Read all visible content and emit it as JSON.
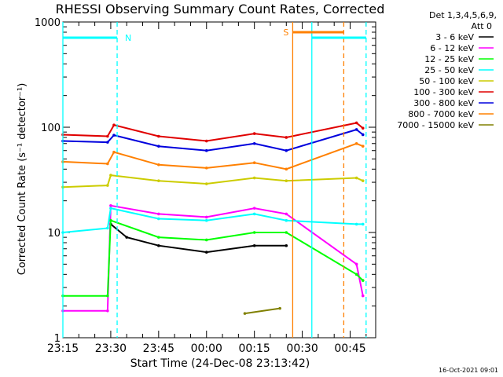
{
  "title": "RHESSI Observing Summary Count Rates, Corrected",
  "footer_timestamp": "16-Oct-2021 09:01",
  "legend": {
    "header_line1": "Det 1,3,4,5,6,9,",
    "header_line2": "Att 0"
  },
  "chart_data": {
    "type": "line",
    "title": "RHESSI Observing Summary Count Rates, Corrected",
    "xlabel": "Start Time (24-Dec-08 23:13:42)",
    "ylabel": "Corrected Count Rate (s⁻¹ detector⁻¹)",
    "yscale": "log",
    "ylim": [
      1,
      1000
    ],
    "y_ticks": [
      "1",
      "10",
      "100",
      "1000"
    ],
    "xlim": [
      "23:15",
      "00:53"
    ],
    "x_ticks": [
      "23:15",
      "23:30",
      "23:45",
      "00:00",
      "00:15",
      "00:30",
      "00:45"
    ],
    "grid": false,
    "legend_position": "right",
    "series": [
      {
        "name": "3 - 6 keV",
        "color": "#000000",
        "points": [
          [
            "23:30",
            12
          ],
          [
            "23:35",
            9
          ],
          [
            "23:45",
            7.5
          ],
          [
            "00:00",
            6.5
          ],
          [
            "00:15",
            7.5
          ],
          [
            "00:25",
            7.5
          ]
        ]
      },
      {
        "name": "6 - 12 keV",
        "color": "#ff00ff",
        "points": [
          [
            "23:15",
            1.8
          ],
          [
            "23:29",
            1.8
          ],
          [
            "23:30",
            18
          ],
          [
            "23:45",
            15
          ],
          [
            "00:00",
            14
          ],
          [
            "00:15",
            17
          ],
          [
            "00:25",
            15
          ],
          [
            "00:47",
            5
          ],
          [
            "00:49",
            2.5
          ]
        ]
      },
      {
        "name": "12 - 25 keV",
        "color": "#00ff00",
        "points": [
          [
            "23:15",
            2.5
          ],
          [
            "23:29",
            2.5
          ],
          [
            "23:30",
            13
          ],
          [
            "23:45",
            9
          ],
          [
            "00:00",
            8.5
          ],
          [
            "00:15",
            10
          ],
          [
            "00:25",
            10
          ],
          [
            "00:47",
            4
          ],
          [
            "00:49",
            3.5
          ]
        ]
      },
      {
        "name": "25 - 50 keV",
        "color": "#00ffff",
        "points": [
          [
            "23:15",
            10
          ],
          [
            "23:29",
            11
          ],
          [
            "23:30",
            17
          ],
          [
            "23:45",
            13.5
          ],
          [
            "00:00",
            13
          ],
          [
            "00:15",
            15
          ],
          [
            "00:25",
            13
          ],
          [
            "00:47",
            12
          ],
          [
            "00:49",
            12
          ]
        ]
      },
      {
        "name": "50 - 100 keV",
        "color": "#cccc00",
        "points": [
          [
            "23:15",
            27
          ],
          [
            "23:29",
            28
          ],
          [
            "23:30",
            35
          ],
          [
            "23:45",
            31
          ],
          [
            "00:00",
            29
          ],
          [
            "00:15",
            33
          ],
          [
            "00:25",
            31
          ],
          [
            "00:47",
            33
          ],
          [
            "00:49",
            31
          ]
        ]
      },
      {
        "name": "100 - 300 keV",
        "color": "#e00000",
        "points": [
          [
            "23:15",
            85
          ],
          [
            "23:29",
            82
          ],
          [
            "23:31",
            105
          ],
          [
            "23:45",
            82
          ],
          [
            "00:00",
            74
          ],
          [
            "00:15",
            87
          ],
          [
            "00:25",
            80
          ],
          [
            "00:47",
            110
          ],
          [
            "00:49",
            98
          ]
        ]
      },
      {
        "name": "300 - 800 keV",
        "color": "#0000dd",
        "points": [
          [
            "23:15",
            74
          ],
          [
            "23:29",
            72
          ],
          [
            "23:31",
            84
          ],
          [
            "23:45",
            66
          ],
          [
            "00:00",
            60
          ],
          [
            "00:15",
            70
          ],
          [
            "00:25",
            60
          ],
          [
            "00:47",
            95
          ],
          [
            "00:49",
            85
          ]
        ]
      },
      {
        "name": "800 - 7000 keV",
        "color": "#ff8000",
        "points": [
          [
            "23:15",
            47
          ],
          [
            "23:29",
            45
          ],
          [
            "23:31",
            58
          ],
          [
            "23:45",
            44
          ],
          [
            "00:00",
            41
          ],
          [
            "00:15",
            46
          ],
          [
            "00:25",
            40
          ],
          [
            "00:47",
            70
          ],
          [
            "00:49",
            66
          ]
        ]
      },
      {
        "name": "7000 - 15000 keV",
        "color": "#808000",
        "points": [
          [
            "00:12",
            1.7
          ],
          [
            "00:23",
            1.9
          ]
        ]
      }
    ],
    "markers": {
      "night_label": "N",
      "saa_label": "S",
      "vertical_lines": [
        {
          "time": "23:15",
          "color": "#00ffff",
          "style": "solid"
        },
        {
          "time": "23:32",
          "color": "#00ffff",
          "style": "dashed"
        },
        {
          "time": "00:27",
          "color": "#ff8000",
          "style": "solid"
        },
        {
          "time": "00:33",
          "color": "#00ffff",
          "style": "solid"
        },
        {
          "time": "00:43",
          "color": "#ff8000",
          "style": "dashed"
        },
        {
          "time": "00:50",
          "color": "#00ffff",
          "style": "dashed"
        }
      ],
      "bars": [
        {
          "from": "23:15",
          "to": "23:32",
          "color": "#00ffff"
        },
        {
          "from": "00:27",
          "to": "00:43",
          "color": "#ff8000"
        },
        {
          "from": "00:33",
          "to": "00:50",
          "color": "#00ffff"
        }
      ]
    }
  }
}
